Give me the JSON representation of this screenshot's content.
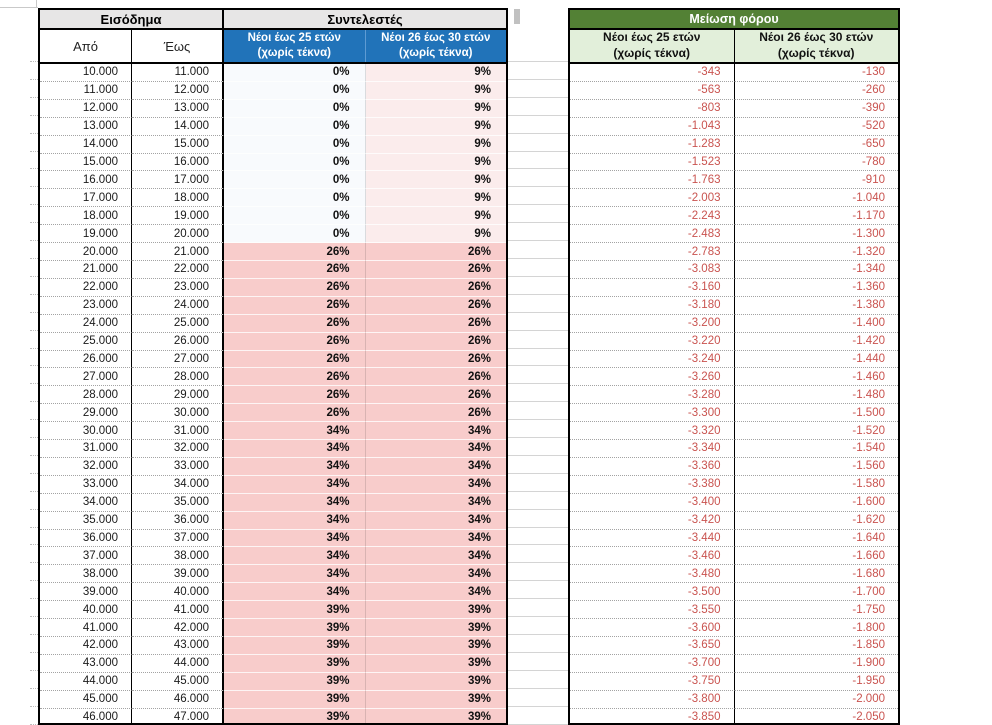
{
  "left_table": {
    "income_header": "Εισόδημα",
    "coef_header": "Συντελεστές",
    "from_label": "Από",
    "to_label": "Έως",
    "age25_line1": "Νέοι έως 25 ετών",
    "age25_line2": "(χωρίς τέκνα)",
    "age30_line1": "Νέοι 26 έως 30 ετών",
    "age30_line2": "(χωρίς τέκνα)"
  },
  "right_table": {
    "header": "Μείωση φόρου",
    "age25_line1": "Νέοι έως 25 ετών",
    "age25_line2": "(χωρίς τέκνα)",
    "age30_line1": "Νέοι 26 έως 30 ετών",
    "age30_line2": "(χωρίς τέκνα)"
  },
  "colors": {
    "header_gray": "#E7E6E6",
    "blue_header": "#2173B9",
    "green_header": "#538135",
    "green_subheader": "#E2EFDA",
    "rate_bg": "#F8CCCB",
    "rate_light_bg": "#FBECEC",
    "rate_zero_bg": "#F8FAFD",
    "value_red": "#C9534F"
  },
  "rows": [
    {
      "from": "10.000",
      "to": "11.000",
      "r25": "0%",
      "r30": "9%",
      "m25": "-343",
      "m30": "-130"
    },
    {
      "from": "11.000",
      "to": "12.000",
      "r25": "0%",
      "r30": "9%",
      "m25": "-563",
      "m30": "-260"
    },
    {
      "from": "12.000",
      "to": "13.000",
      "r25": "0%",
      "r30": "9%",
      "m25": "-803",
      "m30": "-390"
    },
    {
      "from": "13.000",
      "to": "14.000",
      "r25": "0%",
      "r30": "9%",
      "m25": "-1.043",
      "m30": "-520"
    },
    {
      "from": "14.000",
      "to": "15.000",
      "r25": "0%",
      "r30": "9%",
      "m25": "-1.283",
      "m30": "-650"
    },
    {
      "from": "15.000",
      "to": "16.000",
      "r25": "0%",
      "r30": "9%",
      "m25": "-1.523",
      "m30": "-780"
    },
    {
      "from": "16.000",
      "to": "17.000",
      "r25": "0%",
      "r30": "9%",
      "m25": "-1.763",
      "m30": "-910"
    },
    {
      "from": "17.000",
      "to": "18.000",
      "r25": "0%",
      "r30": "9%",
      "m25": "-2.003",
      "m30": "-1.040"
    },
    {
      "from": "18.000",
      "to": "19.000",
      "r25": "0%",
      "r30": "9%",
      "m25": "-2.243",
      "m30": "-1.170"
    },
    {
      "from": "19.000",
      "to": "20.000",
      "r25": "0%",
      "r30": "9%",
      "m25": "-2.483",
      "m30": "-1.300"
    },
    {
      "from": "20.000",
      "to": "21.000",
      "r25": "26%",
      "r30": "26%",
      "m25": "-2.783",
      "m30": "-1.320"
    },
    {
      "from": "21.000",
      "to": "22.000",
      "r25": "26%",
      "r30": "26%",
      "m25": "-3.083",
      "m30": "-1.340"
    },
    {
      "from": "22.000",
      "to": "23.000",
      "r25": "26%",
      "r30": "26%",
      "m25": "-3.160",
      "m30": "-1.360"
    },
    {
      "from": "23.000",
      "to": "24.000",
      "r25": "26%",
      "r30": "26%",
      "m25": "-3.180",
      "m30": "-1.380"
    },
    {
      "from": "24.000",
      "to": "25.000",
      "r25": "26%",
      "r30": "26%",
      "m25": "-3.200",
      "m30": "-1.400"
    },
    {
      "from": "25.000",
      "to": "26.000",
      "r25": "26%",
      "r30": "26%",
      "m25": "-3.220",
      "m30": "-1.420"
    },
    {
      "from": "26.000",
      "to": "27.000",
      "r25": "26%",
      "r30": "26%",
      "m25": "-3.240",
      "m30": "-1.440"
    },
    {
      "from": "27.000",
      "to": "28.000",
      "r25": "26%",
      "r30": "26%",
      "m25": "-3.260",
      "m30": "-1.460"
    },
    {
      "from": "28.000",
      "to": "29.000",
      "r25": "26%",
      "r30": "26%",
      "m25": "-3.280",
      "m30": "-1.480"
    },
    {
      "from": "29.000",
      "to": "30.000",
      "r25": "26%",
      "r30": "26%",
      "m25": "-3.300",
      "m30": "-1.500"
    },
    {
      "from": "30.000",
      "to": "31.000",
      "r25": "34%",
      "r30": "34%",
      "m25": "-3.320",
      "m30": "-1.520"
    },
    {
      "from": "31.000",
      "to": "32.000",
      "r25": "34%",
      "r30": "34%",
      "m25": "-3.340",
      "m30": "-1.540"
    },
    {
      "from": "32.000",
      "to": "33.000",
      "r25": "34%",
      "r30": "34%",
      "m25": "-3.360",
      "m30": "-1.560"
    },
    {
      "from": "33.000",
      "to": "34.000",
      "r25": "34%",
      "r30": "34%",
      "m25": "-3.380",
      "m30": "-1.580"
    },
    {
      "from": "34.000",
      "to": "35.000",
      "r25": "34%",
      "r30": "34%",
      "m25": "-3.400",
      "m30": "-1.600"
    },
    {
      "from": "35.000",
      "to": "36.000",
      "r25": "34%",
      "r30": "34%",
      "m25": "-3.420",
      "m30": "-1.620"
    },
    {
      "from": "36.000",
      "to": "37.000",
      "r25": "34%",
      "r30": "34%",
      "m25": "-3.440",
      "m30": "-1.640"
    },
    {
      "from": "37.000",
      "to": "38.000",
      "r25": "34%",
      "r30": "34%",
      "m25": "-3.460",
      "m30": "-1.660"
    },
    {
      "from": "38.000",
      "to": "39.000",
      "r25": "34%",
      "r30": "34%",
      "m25": "-3.480",
      "m30": "-1.680"
    },
    {
      "from": "39.000",
      "to": "40.000",
      "r25": "34%",
      "r30": "34%",
      "m25": "-3.500",
      "m30": "-1.700"
    },
    {
      "from": "40.000",
      "to": "41.000",
      "r25": "39%",
      "r30": "39%",
      "m25": "-3.550",
      "m30": "-1.750"
    },
    {
      "from": "41.000",
      "to": "42.000",
      "r25": "39%",
      "r30": "39%",
      "m25": "-3.600",
      "m30": "-1.800"
    },
    {
      "from": "42.000",
      "to": "43.000",
      "r25": "39%",
      "r30": "39%",
      "m25": "-3.650",
      "m30": "-1.850"
    },
    {
      "from": "43.000",
      "to": "44.000",
      "r25": "39%",
      "r30": "39%",
      "m25": "-3.700",
      "m30": "-1.900"
    },
    {
      "from": "44.000",
      "to": "45.000",
      "r25": "39%",
      "r30": "39%",
      "m25": "-3.750",
      "m30": "-1.950"
    },
    {
      "from": "45.000",
      "to": "46.000",
      "r25": "39%",
      "r30": "39%",
      "m25": "-3.800",
      "m30": "-2.000"
    },
    {
      "from": "46.000",
      "to": "47.000",
      "r25": "39%",
      "r30": "39%",
      "m25": "-3.850",
      "m30": "-2.050"
    }
  ]
}
